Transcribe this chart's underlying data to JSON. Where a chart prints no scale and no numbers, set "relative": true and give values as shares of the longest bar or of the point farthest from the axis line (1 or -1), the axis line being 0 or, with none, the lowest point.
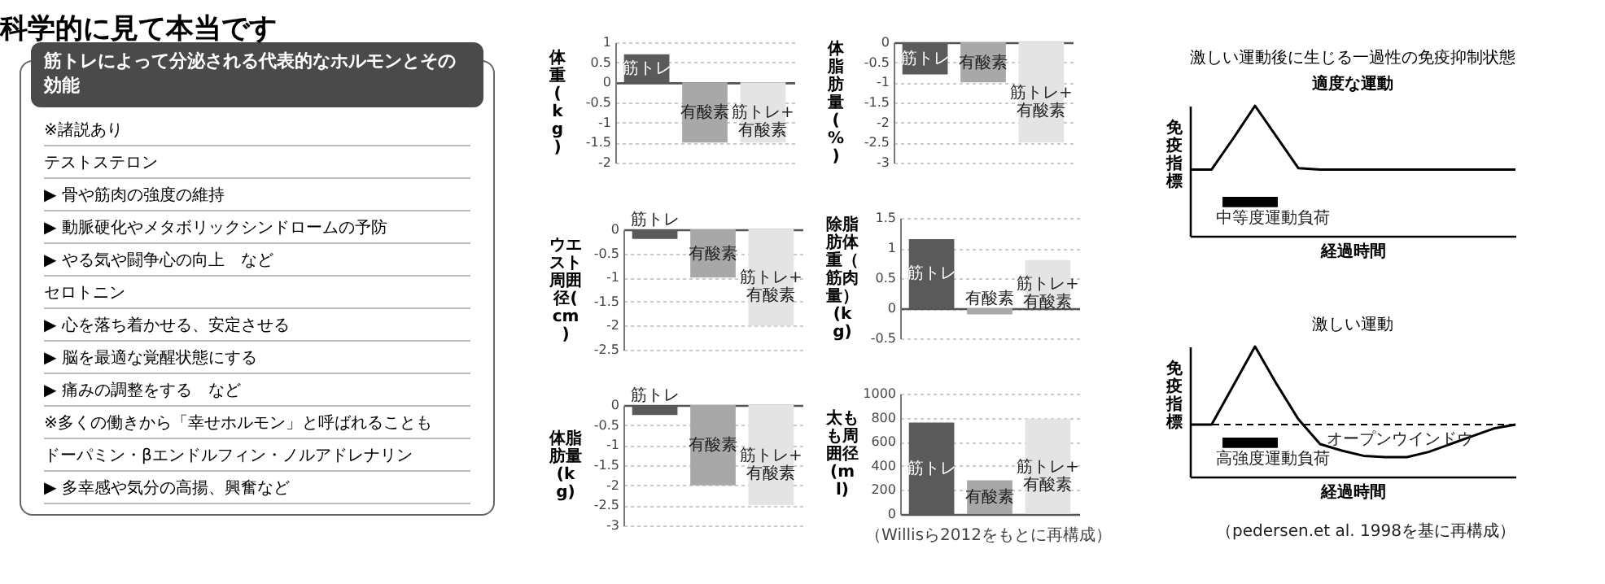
{
  "chart_data": [
    {
      "type": "other",
      "title": "科学的に見て本当です",
      "subtitle": "筋トレによって分泌される代表的なホルモンとその効能",
      "annotations": [
        "※諸説あり",
        "テストステロン",
        "▶ 骨や筋肉の強度の維持",
        "▶ 動脈硬化やメタボリックシンドロームの予防",
        "▶ やる気や闘争心の向上　など",
        "セロトニン",
        "▶ 心を落ち着かせる、安定させる",
        "▶ 脳を最適な覚醒状態にする",
        "▶ 痛みの調整をする　など",
        "※多くの働きから「幸せホルモン」と呼ばれることも",
        "ドーパミン・βエンドルフィン・ノルアドレナリン",
        "▶ 多幸感や気分の高揚、興奮など"
      ]
    },
    {
      "type": "bar",
      "ylabel": "体重(kg)",
      "categories": [
        "筋トレ",
        "有酸素",
        "筋トレ+有酸素"
      ],
      "values": [
        0.7,
        -1.5,
        -1.5
      ],
      "colors": [
        "#5a5a5a",
        "#a8a8a8",
        "#e4e4e4"
      ],
      "ylim": [
        -2,
        1
      ],
      "yticks": [
        -2,
        -1.5,
        -1,
        -0.5,
        0,
        0.5,
        1
      ],
      "grid": "y"
    },
    {
      "type": "bar",
      "ylabel": "体脂肪量(%)",
      "categories": [
        "筋トレ",
        "有酸素",
        "筋トレ+有酸素"
      ],
      "values": [
        -0.8,
        -1.0,
        -2.5
      ],
      "colors": [
        "#5a5a5a",
        "#a8a8a8",
        "#e4e4e4"
      ],
      "ylim": [
        -3,
        0
      ],
      "yticks": [
        -3,
        -2.5,
        -2,
        -1.5,
        -1,
        -0.5,
        0
      ],
      "grid": "y"
    },
    {
      "type": "bar",
      "ylabel": "ウエスト周囲径(cm)",
      "categories": [
        "筋トレ",
        "有酸素",
        "筋トレ+有酸素"
      ],
      "values": [
        -0.2,
        -1.0,
        -2.0
      ],
      "colors": [
        "#5a5a5a",
        "#a8a8a8",
        "#e4e4e4"
      ],
      "ylim": [
        -2.5,
        0
      ],
      "yticks": [
        -2.5,
        -2,
        -1.5,
        -1,
        -0.5,
        0
      ],
      "grid": "y"
    },
    {
      "type": "bar",
      "ylabel": "除脂肪体重（筋肉量）(kg)",
      "categories": [
        "筋トレ",
        "有酸素",
        "筋トレ+有酸素"
      ],
      "values": [
        1.15,
        -0.1,
        0.8
      ],
      "colors": [
        "#5a5a5a",
        "#a8a8a8",
        "#e4e4e4"
      ],
      "ylim": [
        -0.5,
        1.5
      ],
      "yticks": [
        -0.5,
        0,
        0.5,
        1,
        1.5
      ],
      "grid": "y"
    },
    {
      "type": "bar",
      "ylabel": "体脂肪量(kg)",
      "categories": [
        "筋トレ",
        "有酸素",
        "筋トレ+有酸素"
      ],
      "values": [
        -0.25,
        -2.0,
        -2.5
      ],
      "colors": [
        "#5a5a5a",
        "#a8a8a8",
        "#e4e4e4"
      ],
      "ylim": [
        -3,
        0
      ],
      "yticks": [
        -3,
        -2.5,
        -2,
        -1.5,
        -1,
        -0.5,
        0
      ],
      "grid": "y"
    },
    {
      "type": "bar",
      "ylabel": "太もも周囲径(ml)",
      "categories": [
        "筋トレ",
        "有酸素",
        "筋トレ+有酸素"
      ],
      "values": [
        760,
        280,
        790
      ],
      "colors": [
        "#5a5a5a",
        "#a8a8a8",
        "#e4e4e4"
      ],
      "ylim": [
        0,
        1000
      ],
      "yticks": [
        0,
        200,
        400,
        600,
        800,
        1000
      ],
      "grid": "y",
      "annotations": [
        "（Willisら2012をもとに再構成）"
      ]
    },
    {
      "type": "line",
      "relative": true,
      "title": "激しい運動後に生じる一過性の免疫抑制状態",
      "subtitle": "適度な運動",
      "xlabel": "経過時間",
      "ylabel": "免疫指標",
      "categories": [
        null,
        null,
        null,
        null,
        null,
        null,
        null,
        null,
        null,
        null,
        null,
        null,
        null,
        null,
        null,
        null
      ],
      "series": [
        {
          "color": "#000000",
          "values": [
            0.51,
            0.51,
            0.75,
            1,
            0.76,
            0.52,
            0.51,
            0.51,
            0.51,
            0.51,
            0.51,
            0.51,
            0.51,
            0.51,
            0.51,
            0.51
          ]
        }
      ],
      "annotations": [
        "中等度運動負荷"
      ]
    },
    {
      "type": "line",
      "relative": true,
      "title": "激しい運動",
      "xlabel": "経過時間",
      "ylabel": "免疫指標",
      "categories": [
        null,
        null,
        null,
        null,
        null,
        null,
        null,
        null,
        null,
        null,
        null,
        null,
        null,
        null,
        null,
        null
      ],
      "series": [
        {
          "color": "#000000",
          "values": [
            0.4,
            0.4,
            0.7,
            1,
            0.71,
            0.44,
            0.25,
            0.2,
            0.16,
            0.15,
            0.15,
            0.19,
            0.25,
            0.31,
            0.37,
            0.4
          ]
        }
      ],
      "ref_lines": [
        {
          "axis": "y",
          "value": 0.4,
          "line_style": "dashed"
        }
      ],
      "annotations": [
        "高強度運動負荷",
        "オープンウインドウ",
        "（pedersen.et al. 1998を基に再構成）"
      ]
    }
  ]
}
